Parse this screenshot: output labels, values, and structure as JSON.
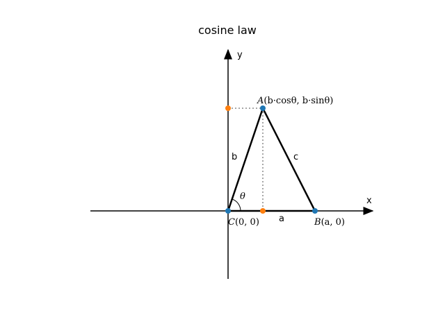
{
  "title": "cosine law",
  "axes": {
    "x_label": "x",
    "y_label": "y"
  },
  "sides": {
    "a": "a",
    "b": "b",
    "c": "c"
  },
  "angle": "θ",
  "points": {
    "A": {
      "name": "A",
      "coords": "(b·cosθ, b·sinθ)",
      "color": "#1f77b4"
    },
    "B": {
      "name": "B",
      "coords": "(a, 0)",
      "color": "#1f77b4"
    },
    "C": {
      "name": "C",
      "coords": "(0, 0)",
      "color": "#1f77b4"
    },
    "projections_color": "#ff7f0e"
  }
}
